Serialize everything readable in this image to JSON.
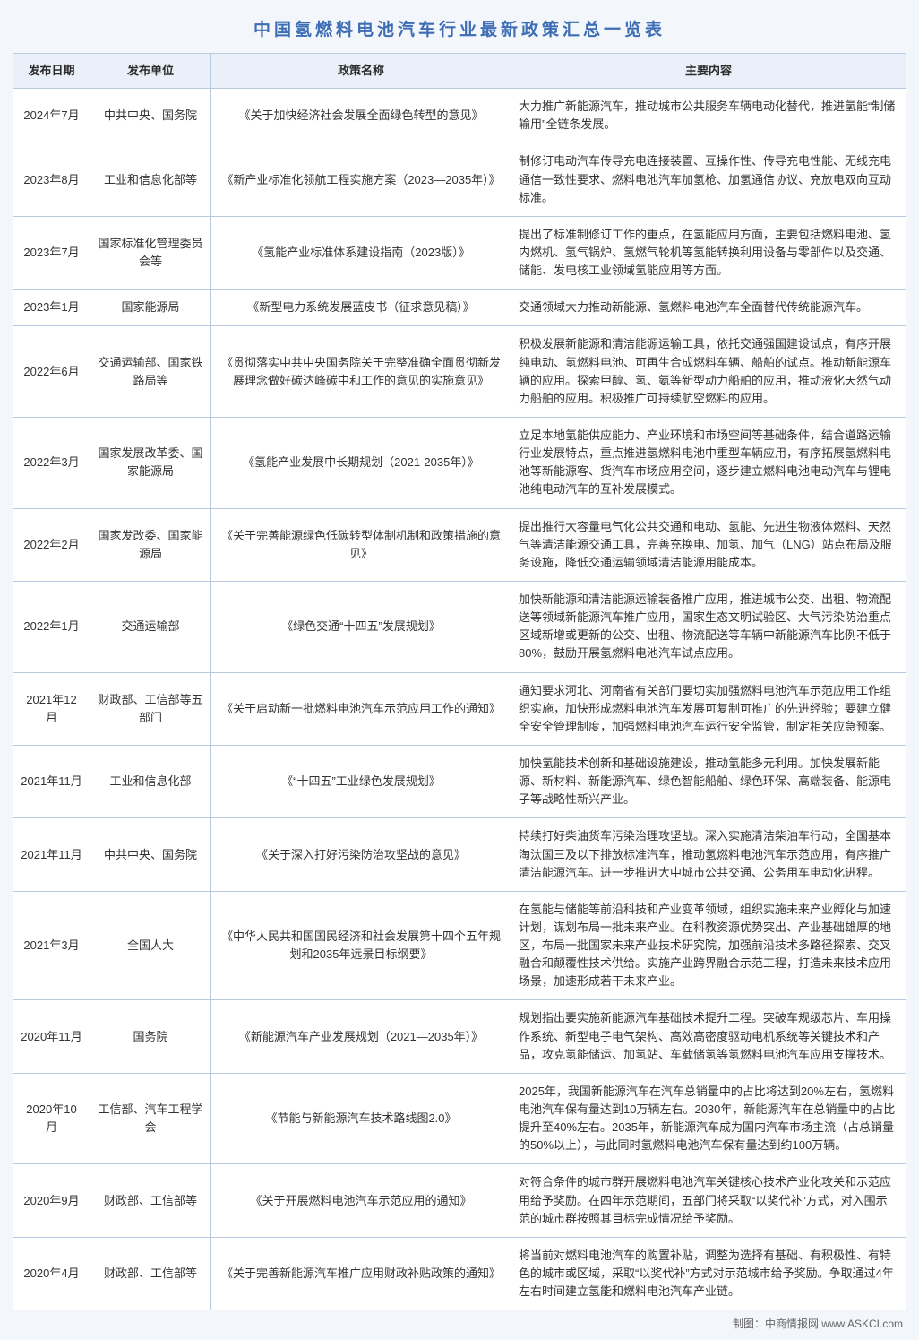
{
  "title": "中国氢燃料电池汽车行业最新政策汇总一览表",
  "columns": [
    "发布日期",
    "发布单位",
    "政策名称",
    "主要内容"
  ],
  "rows": [
    {
      "date": "2024年7月",
      "agency": "中共中央、国务院",
      "policy": "《关于加快经济社会发展全面绿色转型的意见》",
      "content": "大力推广新能源汽车，推动城市公共服务车辆电动化替代，推进氢能“制储输用”全链条发展。"
    },
    {
      "date": "2023年8月",
      "agency": "工业和信息化部等",
      "policy": "《新产业标准化领航工程实施方案（2023—2035年）》",
      "content": "制修订电动汽车传导充电连接装置、互操作性、传导充电性能、无线充电通信一致性要求、燃料电池汽车加氢枪、加氢通信协议、充放电双向互动标准。"
    },
    {
      "date": "2023年7月",
      "agency": "国家标准化管理委员会等",
      "policy": "《氢能产业标准体系建设指南（2023版）》",
      "content": "提出了标准制修订工作的重点，在氢能应用方面，主要包括燃料电池、氢内燃机、氢气锅炉、氢燃气轮机等氢能转换利用设备与零部件以及交通、储能、发电核工业领域氢能应用等方面。"
    },
    {
      "date": "2023年1月",
      "agency": "国家能源局",
      "policy": "《新型电力系统发展蓝皮书（征求意见稿）》",
      "content": "交通领域大力推动新能源、氢燃料电池汽车全面替代传统能源汽车。"
    },
    {
      "date": "2022年6月",
      "agency": "交通运输部、国家铁路局等",
      "policy": "《贯彻落实中共中央国务院关于完整准确全面贯彻新发展理念做好碳达峰碳中和工作的意见的实施意见》",
      "content": "积极发展新能源和清洁能源运输工具，依托交通强国建设试点，有序开展纯电动、氢燃料电池、可再生合成燃料车辆、船舶的试点。推动新能源车辆的应用。探索甲醇、氢、氨等新型动力船舶的应用，推动液化天然气动力船舶的应用。积极推广可持续航空燃料的应用。"
    },
    {
      "date": "2022年3月",
      "agency": "国家发展改革委、国家能源局",
      "policy": "《氢能产业发展中长期规划（2021-2035年）》",
      "content": "立足本地氢能供应能力、产业环境和市场空间等基础条件，结合道路运输行业发展特点，重点推进氢燃料电池中重型车辆应用，有序拓展氢燃料电池等新能源客、货汽车市场应用空间，逐步建立燃料电池电动汽车与锂电池纯电动汽车的互补发展模式。"
    },
    {
      "date": "2022年2月",
      "agency": "国家发改委、国家能源局",
      "policy": "《关于完善能源绿色低碳转型体制机制和政策措施的意见》",
      "content": "提出推行大容量电气化公共交通和电动、氢能、先进生物液体燃料、天然气等清洁能源交通工具，完善充换电、加氢、加气（LNG）站点布局及服务设施，降低交通运输领域清洁能源用能成本。"
    },
    {
      "date": "2022年1月",
      "agency": "交通运输部",
      "policy": "《绿色交通“十四五”发展规划》",
      "content": "加快新能源和清洁能源运输装备推广应用，推进城市公交、出租、物流配送等领域新能源汽车推广应用，国家生态文明试验区、大气污染防治重点区域新增或更新的公交、出租、物流配送等车辆中新能源汽车比例不低于80%，鼓励开展氢燃料电池汽车试点应用。"
    },
    {
      "date": "2021年12月",
      "agency": "财政部、工信部等五部门",
      "policy": "《关于启动新一批燃料电池汽车示范应用工作的通知》",
      "content": "通知要求河北、河南省有关部门要切实加强燃料电池汽车示范应用工作组织实施，加快形成燃料电池汽车发展可复制可推广的先进经验；要建立健全安全管理制度，加强燃料电池汽车运行安全监管，制定相关应急预案。"
    },
    {
      "date": "2021年11月",
      "agency": "工业和信息化部",
      "policy": "《“十四五”工业绿色发展规划》",
      "content": "加快氢能技术创新和基础设施建设，推动氢能多元利用。加快发展新能源、新材料、新能源汽车、绿色智能船舶、绿色环保、高端装备、能源电子等战略性新兴产业。"
    },
    {
      "date": "2021年11月",
      "agency": "中共中央、国务院",
      "policy": "《关于深入打好污染防治攻坚战的意见》",
      "content": "持续打好柴油货车污染治理攻坚战。深入实施清洁柴油车行动，全国基本淘汰国三及以下排放标准汽车，推动氢燃料电池汽车示范应用，有序推广清洁能源汽车。进一步推进大中城市公共交通、公务用车电动化进程。"
    },
    {
      "date": "2021年3月",
      "agency": "全国人大",
      "policy": "《中华人民共和国国民经济和社会发展第十四个五年规划和2035年远景目标纲要》",
      "content": "在氢能与储能等前沿科技和产业变革领域，组织实施未来产业孵化与加速计划，谋划布局一批未来产业。在科教资源优势突出、产业基础雄厚的地区，布局一批国家未来产业技术研究院，加强前沿技术多路径探索、交叉融合和颠覆性技术供给。实施产业跨界融合示范工程，打造未来技术应用场景，加速形成若干未来产业。"
    },
    {
      "date": "2020年11月",
      "agency": "国务院",
      "policy": "《新能源汽车产业发展规划（2021—2035年）》",
      "content": "规划指出要实施新能源汽车基础技术提升工程。突破车规级芯片、车用操作系统、新型电子电气架构、高效高密度驱动电机系统等关键技术和产品，攻克氢能储运、加氢站、车载储氢等氢燃料电池汽车应用支撑技术。"
    },
    {
      "date": "2020年10月",
      "agency": "工信部、汽车工程学会",
      "policy": "《节能与新能源汽车技术路线图2.0》",
      "content": "2025年，我国新能源汽车在汽车总销量中的占比将达到20%左右，氢燃料电池汽车保有量达到10万辆左右。2030年，新能源汽车在总销量中的占比提升至40%左右。2035年，新能源汽车成为国内汽车市场主流（占总销量的50%以上），与此同时氢燃料电池汽车保有量达到约100万辆。"
    },
    {
      "date": "2020年9月",
      "agency": "财政部、工信部等",
      "policy": "《关于开展燃料电池汽车示范应用的通知》",
      "content": "对符合条件的城市群开展燃料电池汽车关键核心技术产业化攻关和示范应用给予奖励。在四年示范期间，五部门将采取“以奖代补”方式，对入围示范的城市群按照其目标完成情况给予奖励。"
    },
    {
      "date": "2020年4月",
      "agency": "财政部、工信部等",
      "policy": "《关于完善新能源汽车推广应用财政补贴政策的通知》",
      "content": "将当前对燃料电池汽车的购置补贴，调整为选择有基础、有积极性、有特色的城市或区域，采取“以奖代补”方式对示范城市给予奖励。争取通过4年左右时间建立氢能和燃料电池汽车产业链。"
    }
  ],
  "footer": "制图：中商情报网  www.ASKCI.com",
  "styles": {
    "title_color": "#3d6db5",
    "border_color": "#b8c9e0",
    "header_bg": "#eaf0f9",
    "page_bg": "#f3f6fb"
  }
}
